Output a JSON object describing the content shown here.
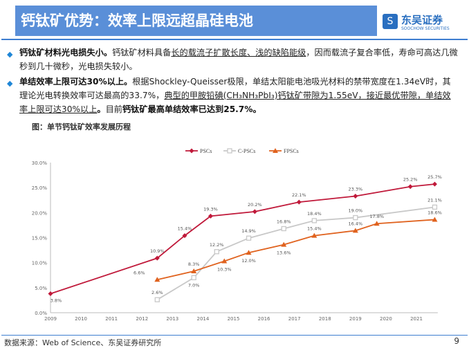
{
  "header": {
    "title": "钙钛矿优势：效率上限远超晶硅电池",
    "logo_cn": "东吴证券",
    "logo_en": "SOOCHOW SECURITIES"
  },
  "bullets": [
    {
      "segments": [
        {
          "t": "钙钛矿材料光电损失小。",
          "b": true
        },
        {
          "t": "钙钛矿材料具备"
        },
        {
          "t": "长的载流子扩散长度、浅的缺陷能级",
          "u": true
        },
        {
          "t": "，因而载流子复合率低，寿命可高达几微秒到几十微秒，光电损失较小。"
        }
      ]
    },
    {
      "segments": [
        {
          "t": "单结效率上限可达30%以上。",
          "b": true
        },
        {
          "t": "根据Shockley-Queisser极限，单结太阳能电池吸光材料的禁带宽度在1.34eV时，其理论光电转换效率可达最高的33.7%，"
        },
        {
          "t": "典型的甲胺铅碘(CH₃NH₃PbI₃)钙钛矿带隙为1.55eV，接近最优带隙，单结效率上限可达30%以上",
          "u": true
        },
        {
          "t": "。",
          "b": true
        },
        {
          "t": "目前"
        },
        {
          "t": "钙钛矿最高单结效率已达到25.7%。",
          "b": true
        }
      ]
    }
  ],
  "figure_title": "图：单节钙钛矿效率发展历程",
  "chart_data": {
    "type": "line",
    "title": "",
    "xlabel": "",
    "ylabel": "",
    "xlim": [
      2009,
      2021.7
    ],
    "ylim": [
      0,
      30
    ],
    "x_ticks": [
      "2009",
      "2010",
      "2011",
      "2012",
      "2013",
      "2014",
      "2015",
      "2016",
      "2017",
      "2018",
      "2019",
      "2020",
      "2021"
    ],
    "y_ticks": [
      "0.0%",
      "5.0%",
      "10.0%",
      "15.0%",
      "20.0%",
      "25.0%",
      "30.0%"
    ],
    "legend_position": "top-center",
    "grid": false,
    "series": [
      {
        "name": "PSCs",
        "color": "#c0193a",
        "marker": "diamond",
        "points": [
          [
            2009.0,
            3.8
          ],
          [
            2012.5,
            10.9
          ],
          [
            2013.4,
            15.4
          ],
          [
            2014.25,
            19.3
          ],
          [
            2015.7,
            20.2
          ],
          [
            2017.15,
            22.1
          ],
          [
            2019.0,
            23.3
          ],
          [
            2020.8,
            25.2
          ],
          [
            2021.6,
            25.7
          ]
        ],
        "labels": [
          "3.8%",
          "10.9%",
          "15.4%",
          "19.3%",
          "20.2%",
          "22.1%",
          "23.3%",
          "25.2%",
          "25.7%"
        ]
      },
      {
        "name": "C-PSCs",
        "color": "#c8c8c8",
        "marker": "square",
        "points": [
          [
            2012.5,
            2.6
          ],
          [
            2013.7,
            7.0
          ],
          [
            2014.45,
            12.2
          ],
          [
            2015.5,
            14.9
          ],
          [
            2016.65,
            16.8
          ],
          [
            2017.65,
            18.4
          ],
          [
            2019.0,
            19.0
          ],
          [
            2021.6,
            21.1
          ]
        ],
        "labels": [
          "2.6%",
          "7.0%",
          "12.2%",
          "14.9%",
          "16.8%",
          "18.4%",
          "19.0%",
          "21.1%"
        ]
      },
      {
        "name": "FPSCs",
        "color": "#e0621e",
        "marker": "triangle",
        "points": [
          [
            2012.5,
            6.6
          ],
          [
            2013.7,
            8.3
          ],
          [
            2014.7,
            10.3
          ],
          [
            2015.5,
            12.0
          ],
          [
            2016.65,
            13.6
          ],
          [
            2017.65,
            15.4
          ],
          [
            2019.0,
            16.4
          ],
          [
            2019.7,
            17.8
          ],
          [
            2021.6,
            18.6
          ]
        ],
        "labels": [
          "6.6%",
          "8.3%",
          "10.3%",
          "12.0%",
          "13.6%",
          "15.4%",
          "16.4%",
          "17.8%",
          "18.6%"
        ]
      }
    ]
  },
  "footer": {
    "source": "数据来源：Web of Science、东吴证券研究所",
    "page": "9"
  }
}
